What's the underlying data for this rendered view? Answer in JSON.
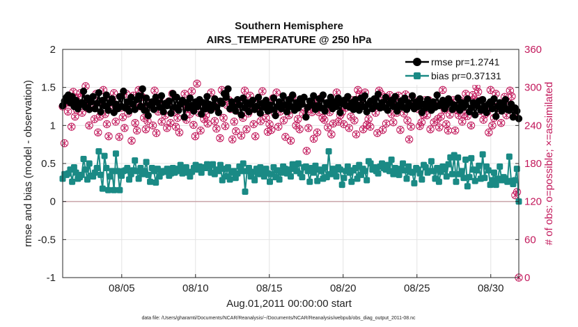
{
  "chart_data": {
    "type": "line",
    "title": "Southern Hemisphere",
    "subtitle": "AIRS_TEMPERATURE @ 250 hPa",
    "xlabel": "Aug.01,2011 00:00:00 start",
    "ylabel": "rmse and bias (model - observation)",
    "ylabel_right": "# of obs: o=possible; ×=assimilated",
    "footer": "data file: /Users/gharamti/Documents/NCAR/Reanalysis/~/Documents/NCAR/Reanalysis/webpub/obs_diag_output_2011-08.nc",
    "xlim": [
      1,
      31.9
    ],
    "ylim": [
      -1,
      2
    ],
    "ylim_right": [
      0,
      360
    ],
    "x_ticks": [
      5,
      10,
      15,
      20,
      25,
      30
    ],
    "x_tick_labels": [
      "08/05",
      "08/10",
      "08/15",
      "08/20",
      "08/25",
      "08/30"
    ],
    "y_ticks": [
      -1,
      -0.5,
      0,
      0.5,
      1,
      1.5,
      2
    ],
    "y_tick_labels": [
      "-1",
      "-0.5",
      "0",
      "0.5",
      "1",
      "1.5",
      "2"
    ],
    "y_right_ticks": [
      0,
      60,
      120,
      180,
      240,
      300,
      360
    ],
    "y_right_tick_labels": [
      "0",
      "60",
      "120",
      "180",
      "240",
      "300",
      "360"
    ],
    "grid": true,
    "legend_position": "top-right",
    "colors": {
      "rmse": "#000000",
      "bias": "#1a8a85",
      "obs": "#c2185b",
      "zero_line": "#c9a3a8",
      "grid": "#e3e3e3"
    },
    "series": [
      {
        "name": "rmse pr=1.2741",
        "axis": "left",
        "values": [
          1.26,
          1.32,
          1.37,
          1.4,
          1.3,
          1.38,
          1.25,
          1.33,
          1.22,
          1.27,
          1.3,
          1.45,
          1.24,
          1.36,
          1.21,
          1.31,
          1.38,
          1.22,
          1.29,
          1.43,
          1.18,
          1.33,
          1.26,
          1.4,
          1.2,
          1.3,
          1.35,
          1.17,
          1.28,
          1.22,
          1.38,
          1.25,
          1.45,
          1.23,
          1.31,
          1.19,
          1.37,
          1.28,
          1.21,
          1.34,
          1.39,
          1.25,
          1.48,
          1.2,
          1.36,
          1.13,
          1.27,
          1.31,
          1.21,
          1.37,
          1.3,
          1.24,
          1.39,
          1.18,
          1.29,
          1.26,
          1.32,
          1.16,
          1.42,
          1.24,
          1.37,
          1.2,
          1.28,
          1.33,
          1.11,
          1.3,
          1.23,
          1.36,
          1.26,
          1.19,
          1.31,
          1.25,
          1.34,
          1.15,
          1.3,
          1.22,
          1.38,
          1.28,
          1.2,
          1.27,
          1.35,
          1.24,
          1.17,
          1.32,
          1.29,
          1.42,
          1.37,
          1.48,
          1.22,
          1.31,
          1.25,
          1.19,
          1.34,
          1.27,
          1.14,
          1.36,
          1.23,
          1.3,
          1.18,
          1.28,
          1.33,
          1.21,
          1.25,
          1.37,
          1.16,
          1.29,
          1.24,
          1.33,
          1.19,
          1.27,
          1.21,
          1.36,
          1.13,
          1.25,
          1.31,
          1.22,
          1.39,
          1.27,
          1.18,
          1.34,
          1.25,
          1.4,
          1.2,
          1.3,
          1.23,
          1.35,
          1.28,
          1.37,
          1.11,
          1.24,
          1.32,
          1.27,
          1.39,
          1.21,
          1.26,
          1.35,
          1.23,
          1.4,
          1.19,
          1.3,
          1.27,
          1.37,
          1.22,
          1.31,
          1.25,
          1.36,
          1.17,
          1.29,
          1.33,
          1.26,
          1.38,
          1.24,
          1.3,
          1.21,
          1.34,
          1.27,
          1.2,
          1.36,
          1.25,
          1.39,
          1.18,
          1.28,
          1.32,
          1.22,
          1.35,
          1.26,
          1.41,
          1.23,
          1.3,
          1.24,
          1.37,
          1.2,
          1.29,
          1.33,
          1.25,
          1.38,
          1.19,
          1.27,
          1.32,
          1.24,
          1.36,
          1.21,
          1.3,
          1.26,
          1.39,
          1.22,
          1.31,
          1.25,
          1.35,
          1.17,
          1.28,
          1.23,
          1.34,
          1.27,
          1.2,
          1.31,
          1.24,
          1.4,
          1.26,
          1.29,
          1.33,
          1.22,
          1.27,
          1.35,
          1.3,
          1.21,
          1.27,
          1.24,
          1.36,
          1.2,
          1.3,
          1.24,
          1.27,
          1.35,
          1.18,
          1.23,
          1.3,
          1.14,
          1.26,
          1.32,
          1.2,
          1.34,
          1.25,
          1.17,
          1.28,
          1.31,
          1.22,
          1.35,
          1.12,
          1.25,
          1.3,
          1.19,
          1.27,
          1.34,
          1.21,
          1.2,
          1.28,
          1.11,
          1.23,
          1.19,
          1.09
        ]
      },
      {
        "name": "bias pr=0.37131",
        "axis": "left",
        "values": [
          0.3,
          0.36,
          0.35,
          0.37,
          0.42,
          0.26,
          0.45,
          0.38,
          0.3,
          0.32,
          0.35,
          0.56,
          0.42,
          0.29,
          0.5,
          0.34,
          0.33,
          0.38,
          0.44,
          0.66,
          0.35,
          0.17,
          0.6,
          0.44,
          0.15,
          0.33,
          0.4,
          0.15,
          0.63,
          0.4,
          0.15,
          0.34,
          0.4,
          0.41,
          0.44,
          0.29,
          0.36,
          0.41,
          0.54,
          0.4,
          0.3,
          0.44,
          0.36,
          0.4,
          0.52,
          0.35,
          0.26,
          0.44,
          0.4,
          0.25,
          0.43,
          0.33,
          0.38,
          0.4,
          0.39,
          0.43,
          0.34,
          0.37,
          0.44,
          0.38,
          0.4,
          0.43,
          0.48,
          0.37,
          0.42,
          0.45,
          0.38,
          0.33,
          0.39,
          0.44,
          0.48,
          0.42,
          0.46,
          0.38,
          0.45,
          0.44,
          0.49,
          0.46,
          0.38,
          0.49,
          0.36,
          0.42,
          0.4,
          0.48,
          0.28,
          0.43,
          0.33,
          0.45,
          0.29,
          0.38,
          0.4,
          0.31,
          0.37,
          0.46,
          0.4,
          0.5,
          0.13,
          0.4,
          0.44,
          0.33,
          0.39,
          0.28,
          0.43,
          0.36,
          0.45,
          0.39,
          0.33,
          0.43,
          0.37,
          0.26,
          0.36,
          0.45,
          0.32,
          0.41,
          0.29,
          0.38,
          0.46,
          0.43,
          0.37,
          0.42,
          0.33,
          0.49,
          0.43,
          0.4,
          0.5,
          0.37,
          0.32,
          0.45,
          0.46,
          0.4,
          0.26,
          0.44,
          0.38,
          0.47,
          0.27,
          0.42,
          0.4,
          0.3,
          0.45,
          0.32,
          0.66,
          0.36,
          0.43,
          0.4,
          0.33,
          0.45,
          0.42,
          0.22,
          0.31,
          0.4,
          0.46,
          0.38,
          0.26,
          0.41,
          0.44,
          0.3,
          0.48,
          0.35,
          0.43,
          0.4,
          0.28,
          0.53,
          0.5,
          0.42,
          0.45,
          0.4,
          0.37,
          0.46,
          0.5,
          0.44,
          0.42,
          0.48,
          0.4,
          0.55,
          0.36,
          0.44,
          0.42,
          0.35,
          0.43,
          0.5,
          0.41,
          0.3,
          0.46,
          0.39,
          0.38,
          0.24,
          0.44,
          0.42,
          0.37,
          0.29,
          0.48,
          0.45,
          0.38,
          0.4,
          0.53,
          0.4,
          0.3,
          0.44,
          0.26,
          0.39,
          0.46,
          0.42,
          0.33,
          0.49,
          0.58,
          0.36,
          0.61,
          0.26,
          0.58,
          0.36,
          0.4,
          0.31,
          0.55,
          0.2,
          0.32,
          0.57,
          0.42,
          0.27,
          0.41,
          0.47,
          0.3,
          0.62,
          0.31,
          0.46,
          0.41,
          0.22,
          0.28,
          0.38,
          0.22,
          0.3,
          0.46,
          0.28,
          0.32,
          0.3,
          0.26,
          0.59,
          0.27,
          0.23,
          0.28,
          0.43,
          0.0
        ]
      },
      {
        "name": "possible",
        "axis": "right",
        "marker": "circle",
        "values": [
          270,
          212,
          276,
          262,
          276,
          238,
          293,
          254,
          265,
          284,
          291,
          260,
          275,
          302,
          267,
          240,
          275,
          281,
          250,
          290,
          229,
          254,
          275,
          296,
          258,
          242,
          223,
          272,
          281,
          291,
          246,
          270,
          222,
          268,
          253,
          236,
          290,
          259,
          274,
          216,
          287,
          244,
          232,
          296,
          270,
          285,
          252,
          234,
          247,
          269,
          276,
          240,
          295,
          228,
          262,
          284,
          246,
          272,
          256,
          236,
          278,
          244,
          290,
          261,
          238,
          252,
          229,
          271,
          276,
          290,
          249,
          266,
          258,
          294,
          241,
          223,
          306,
          260,
          232,
          273,
          250,
          256,
          243,
          272,
          292,
          268,
          247,
          235,
          277,
          220,
          296,
          252,
          239,
          272,
          280,
          266,
          218,
          246,
          231,
          263,
          276,
          224,
          252,
          295,
          234,
          259,
          287,
          266,
          242,
          223,
          280,
          266,
          247,
          294,
          272,
          252,
          230,
          242,
          233,
          283,
          259,
          292,
          238,
          262,
          270,
          248,
          222,
          278,
          256,
          216,
          286,
          268,
          240,
          250,
          234,
          277,
          258,
          268,
          200,
          236,
          266,
          261,
          219,
          276,
          229,
          261,
          283,
          252,
          249,
          268,
          237,
          261,
          226,
          243,
          273,
          292,
          246,
          256,
          261,
          242,
          268,
          273,
          236,
          254,
          280,
          248,
          226,
          296,
          289,
          280,
          234,
          292,
          241,
          250,
          238,
          274,
          269,
          260,
          228,
          295,
          290,
          233,
          285,
          243,
          280,
          288,
          258,
          245,
          276,
          260,
          287,
          233,
          275,
          259,
          289,
          248,
          218,
          238,
          281,
          268,
          273,
          266,
          239,
          245,
          257,
          280,
          256,
          280,
          234,
          267,
          245,
          271,
          250,
          237,
          254,
          296,
          265,
          242,
          232,
          257,
          271,
          280,
          232,
          264,
          256,
          279,
          246,
          258,
          290,
          255,
          266,
          240,
          288,
          281,
          301,
          293,
          263,
          280,
          249,
          258,
          261,
          229,
          296,
          240,
          252,
          290,
          270,
          264,
          244,
          273,
          285,
          256,
          276,
          295,
          286,
          259,
          130,
          135,
          0
        ]
      },
      {
        "name": "assimilated",
        "axis": "right",
        "marker": "x",
        "values": [
          270,
          212,
          276,
          262,
          276,
          238,
          293,
          254,
          265,
          284,
          291,
          260,
          275,
          302,
          267,
          240,
          275,
          281,
          250,
          290,
          229,
          254,
          275,
          296,
          258,
          242,
          223,
          272,
          281,
          291,
          246,
          270,
          222,
          268,
          253,
          236,
          290,
          259,
          274,
          216,
          287,
          244,
          232,
          296,
          270,
          285,
          252,
          234,
          247,
          269,
          276,
          240,
          295,
          228,
          262,
          284,
          246,
          272,
          256,
          236,
          278,
          244,
          290,
          261,
          238,
          252,
          229,
          271,
          276,
          290,
          249,
          266,
          258,
          294,
          241,
          223,
          306,
          260,
          232,
          273,
          250,
          256,
          243,
          272,
          292,
          268,
          247,
          235,
          277,
          220,
          296,
          252,
          239,
          272,
          280,
          266,
          218,
          246,
          231,
          263,
          276,
          224,
          252,
          295,
          234,
          259,
          287,
          266,
          242,
          223,
          280,
          266,
          247,
          294,
          272,
          252,
          230,
          242,
          233,
          283,
          259,
          292,
          238,
          262,
          270,
          248,
          222,
          278,
          256,
          216,
          286,
          268,
          240,
          250,
          234,
          277,
          258,
          268,
          200,
          236,
          266,
          261,
          219,
          276,
          229,
          261,
          283,
          252,
          249,
          268,
          237,
          261,
          226,
          243,
          273,
          292,
          246,
          256,
          261,
          242,
          268,
          273,
          236,
          254,
          280,
          248,
          226,
          296,
          289,
          280,
          234,
          292,
          241,
          250,
          238,
          274,
          269,
          260,
          228,
          295,
          290,
          233,
          285,
          243,
          280,
          288,
          258,
          245,
          276,
          260,
          287,
          233,
          275,
          259,
          289,
          248,
          218,
          238,
          281,
          268,
          273,
          266,
          239,
          245,
          257,
          280,
          256,
          280,
          234,
          267,
          245,
          271,
          250,
          237,
          254,
          296,
          265,
          242,
          232,
          257,
          271,
          280,
          232,
          264,
          256,
          279,
          246,
          258,
          290,
          255,
          266,
          240,
          288,
          281,
          301,
          293,
          263,
          280,
          249,
          258,
          261,
          229,
          296,
          240,
          252,
          290,
          270,
          264,
          244,
          273,
          285,
          256,
          276,
          295,
          286,
          259,
          130,
          135,
          0
        ]
      }
    ]
  }
}
